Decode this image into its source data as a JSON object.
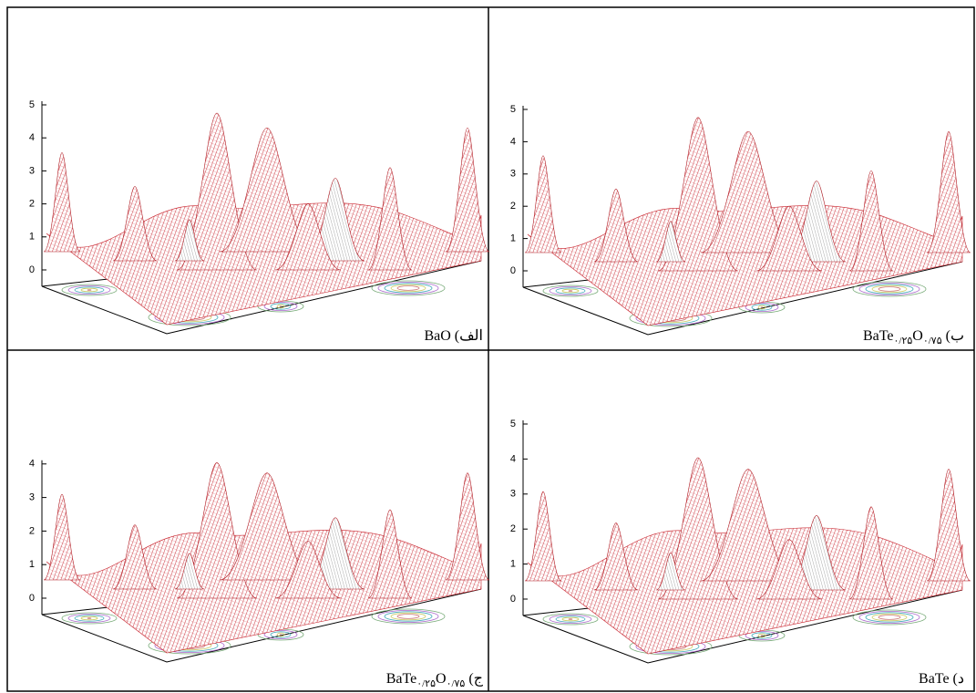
{
  "panels": [
    {
      "yticks": [
        0,
        1,
        2,
        3,
        4,
        5
      ],
      "caption": {
        "label": "الف)",
        "formula": [
          {
            "text": "BaO"
          }
        ]
      }
    },
    {
      "yticks": [
        0,
        1,
        2,
        3,
        4,
        5
      ],
      "caption": {
        "label": "ب)",
        "formula": [
          {
            "text": "BaTe"
          },
          {
            "sub": "۰/۲۵"
          },
          {
            "text": "O"
          },
          {
            "sub": "۰/۷۵"
          }
        ]
      }
    },
    {
      "yticks": [
        0,
        1,
        2,
        3,
        4
      ],
      "caption": {
        "label": "ج)",
        "formula": [
          {
            "text": "BaTe"
          },
          {
            "sub": "۰/۲۵"
          },
          {
            "text": "O"
          },
          {
            "sub": "۰/۷۵"
          }
        ]
      }
    },
    {
      "yticks": [
        0,
        1,
        2,
        3,
        4,
        5
      ],
      "caption": {
        "label": "د)",
        "formula": [
          {
            "text": "BaTe"
          }
        ]
      }
    }
  ]
}
